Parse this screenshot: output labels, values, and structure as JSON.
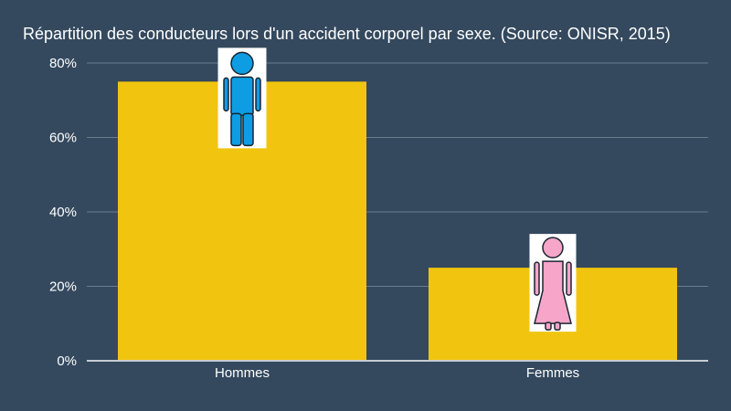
{
  "chart_data": {
    "type": "bar",
    "title": "Répartition des conducteurs lors d'un accident corporel par sexe. (Source: ONISR, 2015)",
    "categories": [
      "Hommes",
      "Femmes"
    ],
    "values": [
      75,
      25
    ],
    "value_unit": "%",
    "ylim": [
      0,
      80
    ],
    "yticks": [
      "0%",
      "20%",
      "40%",
      "60%",
      "80%"
    ],
    "grid": true,
    "bar_color": "#f1c40f",
    "background_color": "#34495e",
    "icons": [
      "man-icon",
      "woman-icon"
    ],
    "icon_colors": [
      "#0e9de2",
      "#f7a5c9"
    ]
  }
}
